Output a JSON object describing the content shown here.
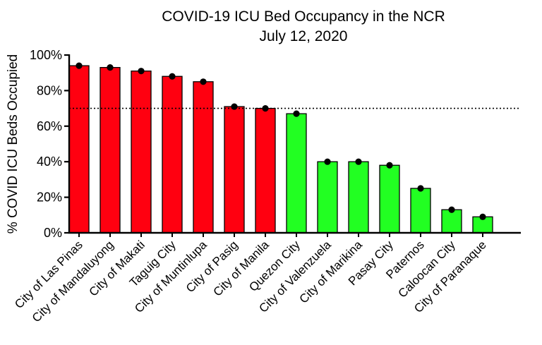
{
  "chart_data": {
    "type": "bar",
    "title": "COVID-19 ICU Bed Occupancy in the NCR",
    "subtitle": "July 12, 2020",
    "xlabel": "",
    "ylabel": "% COVID ICU Beds Occupied",
    "ylim": [
      0,
      100
    ],
    "yticks": [
      "0%",
      "20%",
      "40%",
      "60%",
      "80%",
      "100%"
    ],
    "ytick_values": [
      0,
      20,
      40,
      60,
      80,
      100
    ],
    "reference_line": 70,
    "categories": [
      "City of Las Pinas",
      "City of Mandaluyong",
      "City of Makati",
      "Taguig City",
      "City of Muntinlupa",
      "City of Pasig",
      "City of Manila",
      "Quezon City",
      "City of Valenzuela",
      "City of Marikina",
      "Pasay City",
      "Paternos",
      "Caloocan City",
      "City of Paranaque"
    ],
    "values": [
      94,
      93,
      91,
      88,
      85,
      71,
      70,
      67,
      40,
      40,
      38,
      25,
      13,
      9
    ],
    "colors": {
      "above_threshold": "#ff0010",
      "below_threshold": "#22ff22",
      "outline": "#000000",
      "dot": "#000000"
    },
    "grid": false,
    "legend": "none"
  }
}
